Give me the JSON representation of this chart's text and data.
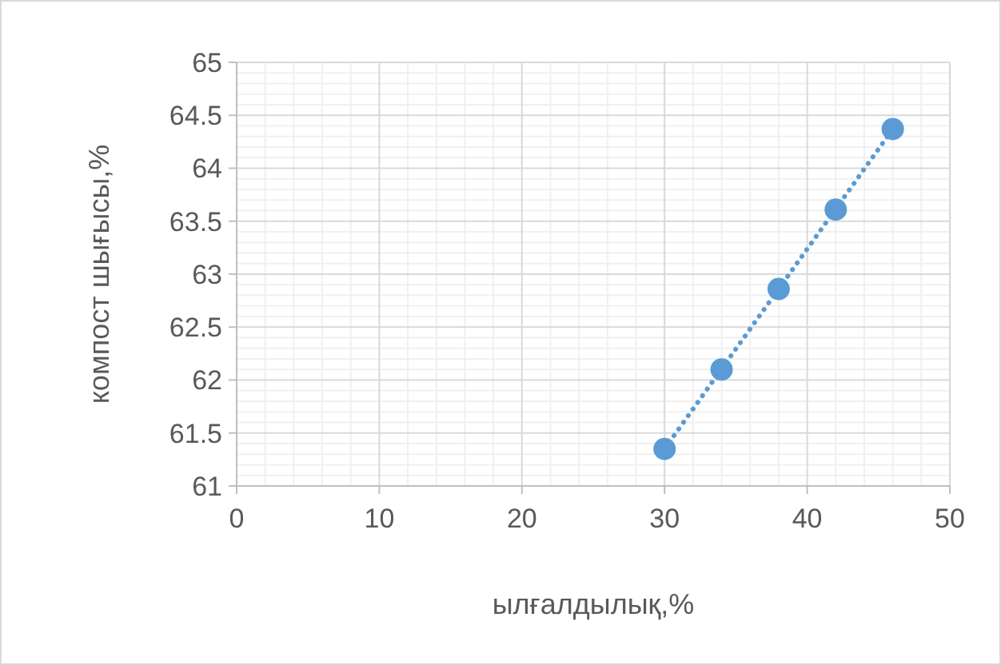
{
  "chart_data": {
    "type": "scatter",
    "xlabel": "ылғалдылық,%",
    "ylabel": "компост шығысы,%",
    "xlim": [
      0,
      50
    ],
    "xticks": [
      0,
      10,
      20,
      30,
      40,
      50
    ],
    "ylim": [
      61,
      65
    ],
    "yticks": [
      61,
      61.5,
      62,
      62.5,
      63,
      63.5,
      64,
      64.5,
      65
    ],
    "grid": true,
    "marker": "circle",
    "x": [
      30,
      34,
      38,
      42,
      46
    ],
    "series": [
      {
        "color": "#5b9bd5",
        "values": [
          61.35,
          62.1,
          62.86,
          63.61,
          64.37
        ]
      },
      {
        "type": "line",
        "color": "#5b9bd5",
        "line_style": "dotted",
        "marker": "none",
        "x": [
          30,
          46
        ],
        "values": [
          61.35,
          64.37
        ]
      }
    ]
  }
}
